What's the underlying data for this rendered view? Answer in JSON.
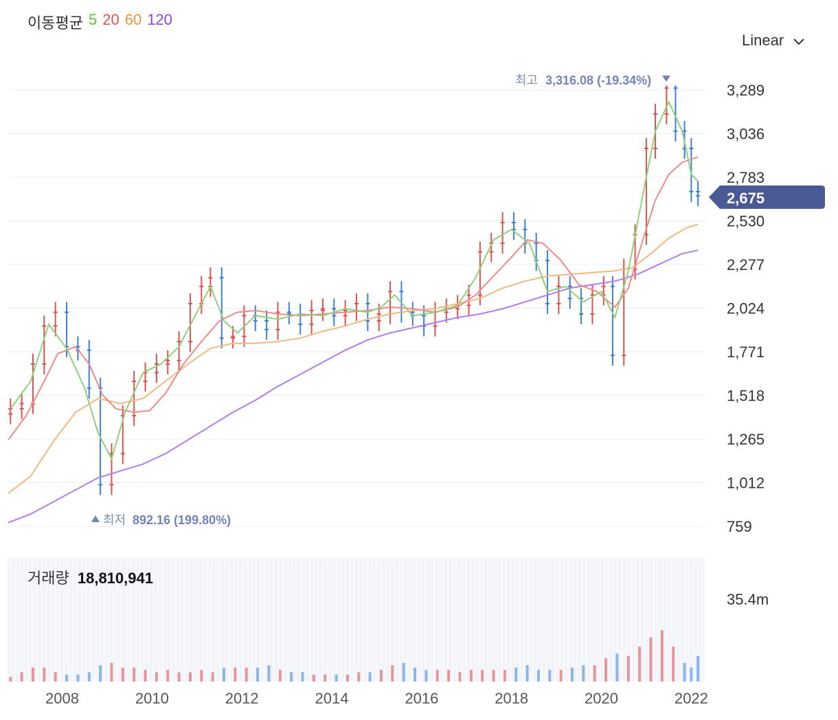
{
  "header": {
    "title": "이동평균",
    "periods": [
      {
        "label": "5",
        "color": "#5ac13d"
      },
      {
        "label": "20",
        "color": "#e8514a"
      },
      {
        "label": "60",
        "color": "#f0913a"
      },
      {
        "label": "120",
        "color": "#8b44e8"
      }
    ]
  },
  "scale": {
    "label": "Linear",
    "icon": "chevron-down-icon"
  },
  "current_price": "2,675",
  "high_marker": {
    "label": "최고",
    "value": "3,316.08 (-19.34%)"
  },
  "low_marker": {
    "label": "최저",
    "value": "892.16 (199.80%)"
  },
  "volume": {
    "label": "거래량",
    "value": "18,810,941",
    "axis_label": "35.4m"
  },
  "colors": {
    "up": "#d9534f",
    "down": "#3d7fd1",
    "grid": "#ececec",
    "ma5": "#8fd07a",
    "ma20": "#ef8a84",
    "ma60": "#f4b77e",
    "ma120": "#b07cf0",
    "tag": "#4a5a96"
  },
  "chart_data": {
    "type": "candlestick",
    "y_ticks": [
      "3,289",
      "3,036",
      "2,783",
      "2,530",
      "2,277",
      "2,024",
      "1,771",
      "1,518",
      "1,265",
      "1,012",
      "759"
    ],
    "y_tick_values": [
      3289,
      3036,
      2783,
      2530,
      2277,
      2024,
      1771,
      1518,
      1265,
      1012,
      759
    ],
    "x_ticks": [
      "2008",
      "2010",
      "2012",
      "2014",
      "2016",
      "2018",
      "2020",
      "2022"
    ],
    "x_tick_values": [
      2008,
      2010,
      2012,
      2014,
      2016,
      2018,
      2020,
      2022
    ],
    "x_range": [
      2006.8,
      2022.3
    ],
    "y_range": [
      759,
      3316
    ],
    "close_series": [
      [
        2006.85,
        1440
      ],
      [
        2007.1,
        1470
      ],
      [
        2007.35,
        1700
      ],
      [
        2007.6,
        1920
      ],
      [
        2007.85,
        2000
      ],
      [
        2008.1,
        1800
      ],
      [
        2008.35,
        1780
      ],
      [
        2008.6,
        1560
      ],
      [
        2008.85,
        1000
      ],
      [
        2009.1,
        1180
      ],
      [
        2009.35,
        1400
      ],
      [
        2009.6,
        1600
      ],
      [
        2009.85,
        1650
      ],
      [
        2010.1,
        1700
      ],
      [
        2010.35,
        1720
      ],
      [
        2010.6,
        1830
      ],
      [
        2010.85,
        2050
      ],
      [
        2011.1,
        2150
      ],
      [
        2011.3,
        2200
      ],
      [
        2011.55,
        1850
      ],
      [
        2011.8,
        1860
      ],
      [
        2012.05,
        1980
      ],
      [
        2012.3,
        1950
      ],
      [
        2012.55,
        1900
      ],
      [
        2012.8,
        2000
      ],
      [
        2013.05,
        1990
      ],
      [
        2013.3,
        1930
      ],
      [
        2013.55,
        2010
      ],
      [
        2013.8,
        2020
      ],
      [
        2014.05,
        1980
      ],
      [
        2014.3,
        2010
      ],
      [
        2014.55,
        2050
      ],
      [
        2014.8,
        1950
      ],
      [
        2015.05,
        1990
      ],
      [
        2015.3,
        2120
      ],
      [
        2015.55,
        2000
      ],
      [
        2015.8,
        1980
      ],
      [
        2016.05,
        1920
      ],
      [
        2016.3,
        2000
      ],
      [
        2016.55,
        2020
      ],
      [
        2016.8,
        2040
      ],
      [
        2017.05,
        2100
      ],
      [
        2017.3,
        2350
      ],
      [
        2017.55,
        2400
      ],
      [
        2017.8,
        2520
      ],
      [
        2018.05,
        2480
      ],
      [
        2018.3,
        2400
      ],
      [
        2018.55,
        2300
      ],
      [
        2018.8,
        2050
      ],
      [
        2019.05,
        2150
      ],
      [
        2019.3,
        2080
      ],
      [
        2019.55,
        1990
      ],
      [
        2019.8,
        2100
      ],
      [
        2020.05,
        2150
      ],
      [
        2020.25,
        1750
      ],
      [
        2020.5,
        2250
      ],
      [
        2020.75,
        2450
      ],
      [
        2021.0,
        2950
      ],
      [
        2021.2,
        3150
      ],
      [
        2021.45,
        3300
      ],
      [
        2021.65,
        3050
      ],
      [
        2021.85,
        2950
      ],
      [
        2022.0,
        2700
      ],
      [
        2022.15,
        2675
      ]
    ],
    "ma5": [
      [
        2006.85,
        1440
      ],
      [
        2007.3,
        1600
      ],
      [
        2007.7,
        1930
      ],
      [
        2008.1,
        1790
      ],
      [
        2008.5,
        1560
      ],
      [
        2008.8,
        1300
      ],
      [
        2009.1,
        1150
      ],
      [
        2009.4,
        1420
      ],
      [
        2009.8,
        1650
      ],
      [
        2010.2,
        1700
      ],
      [
        2010.6,
        1800
      ],
      [
        2011.0,
        2000
      ],
      [
        2011.3,
        2150
      ],
      [
        2011.6,
        1950
      ],
      [
        2011.9,
        1880
      ],
      [
        2012.3,
        1980
      ],
      [
        2012.8,
        1960
      ],
      [
        2013.3,
        1990
      ],
      [
        2013.8,
        1980
      ],
      [
        2014.3,
        2020
      ],
      [
        2014.8,
        2000
      ],
      [
        2015.1,
        2030
      ],
      [
        2015.4,
        2100
      ],
      [
        2015.8,
        1980
      ],
      [
        2016.3,
        2000
      ],
      [
        2016.8,
        2040
      ],
      [
        2017.2,
        2200
      ],
      [
        2017.6,
        2420
      ],
      [
        2018.0,
        2480
      ],
      [
        2018.4,
        2400
      ],
      [
        2018.8,
        2120
      ],
      [
        2019.2,
        2150
      ],
      [
        2019.6,
        2060
      ],
      [
        2020.0,
        2120
      ],
      [
        2020.3,
        1970
      ],
      [
        2020.6,
        2240
      ],
      [
        2020.9,
        2650
      ],
      [
        2021.2,
        3050
      ],
      [
        2021.5,
        3220
      ],
      [
        2021.8,
        3050
      ],
      [
        2022.0,
        2800
      ],
      [
        2022.15,
        2760
      ]
    ],
    "ma20": [
      [
        2006.8,
        1260
      ],
      [
        2007.2,
        1400
      ],
      [
        2007.6,
        1600
      ],
      [
        2007.9,
        1760
      ],
      [
        2008.3,
        1800
      ],
      [
        2008.6,
        1700
      ],
      [
        2008.9,
        1520
      ],
      [
        2009.2,
        1440
      ],
      [
        2009.6,
        1420
      ],
      [
        2009.95,
        1430
      ],
      [
        2010.3,
        1530
      ],
      [
        2010.7,
        1700
      ],
      [
        2011.1,
        1830
      ],
      [
        2011.5,
        1950
      ],
      [
        2011.9,
        2000
      ],
      [
        2012.3,
        2010
      ],
      [
        2012.8,
        1990
      ],
      [
        2013.3,
        1980
      ],
      [
        2013.8,
        1990
      ],
      [
        2014.3,
        2000
      ],
      [
        2014.8,
        2010
      ],
      [
        2015.3,
        2030
      ],
      [
        2015.8,
        2020
      ],
      [
        2016.3,
        2000
      ],
      [
        2016.8,
        2030
      ],
      [
        2017.2,
        2100
      ],
      [
        2017.6,
        2210
      ],
      [
        2018.0,
        2320
      ],
      [
        2018.35,
        2420
      ],
      [
        2018.7,
        2400
      ],
      [
        2019.1,
        2300
      ],
      [
        2019.5,
        2160
      ],
      [
        2019.9,
        2120
      ],
      [
        2020.3,
        2030
      ],
      [
        2020.6,
        2140
      ],
      [
        2020.9,
        2400
      ],
      [
        2021.2,
        2650
      ],
      [
        2021.5,
        2800
      ],
      [
        2021.8,
        2870
      ],
      [
        2022.15,
        2900
      ]
    ],
    "ma60": [
      [
        2006.8,
        950
      ],
      [
        2007.3,
        1050
      ],
      [
        2007.8,
        1250
      ],
      [
        2008.3,
        1420
      ],
      [
        2008.8,
        1500
      ],
      [
        2009.3,
        1470
      ],
      [
        2009.8,
        1500
      ],
      [
        2010.3,
        1600
      ],
      [
        2010.8,
        1700
      ],
      [
        2011.3,
        1790
      ],
      [
        2011.8,
        1820
      ],
      [
        2012.3,
        1820
      ],
      [
        2012.8,
        1830
      ],
      [
        2013.3,
        1850
      ],
      [
        2013.8,
        1890
      ],
      [
        2014.3,
        1920
      ],
      [
        2014.8,
        1960
      ],
      [
        2015.3,
        1990
      ],
      [
        2015.8,
        2010
      ],
      [
        2016.3,
        2020
      ],
      [
        2016.8,
        2050
      ],
      [
        2017.3,
        2080
      ],
      [
        2017.8,
        2140
      ],
      [
        2018.3,
        2180
      ],
      [
        2018.8,
        2210
      ],
      [
        2019.3,
        2220
      ],
      [
        2019.8,
        2230
      ],
      [
        2020.3,
        2240
      ],
      [
        2020.7,
        2260
      ],
      [
        2021.1,
        2340
      ],
      [
        2021.5,
        2430
      ],
      [
        2021.9,
        2490
      ],
      [
        2022.15,
        2510
      ]
    ],
    "ma120": [
      [
        2006.8,
        780
      ],
      [
        2007.3,
        830
      ],
      [
        2007.8,
        900
      ],
      [
        2008.3,
        970
      ],
      [
        2008.8,
        1040
      ],
      [
        2009.3,
        1080
      ],
      [
        2009.8,
        1120
      ],
      [
        2010.3,
        1180
      ],
      [
        2010.8,
        1260
      ],
      [
        2011.3,
        1340
      ],
      [
        2011.8,
        1420
      ],
      [
        2012.3,
        1490
      ],
      [
        2012.8,
        1570
      ],
      [
        2013.3,
        1640
      ],
      [
        2013.8,
        1710
      ],
      [
        2014.3,
        1780
      ],
      [
        2014.8,
        1840
      ],
      [
        2015.3,
        1880
      ],
      [
        2015.8,
        1910
      ],
      [
        2016.3,
        1940
      ],
      [
        2016.8,
        1970
      ],
      [
        2017.3,
        1990
      ],
      [
        2017.8,
        2020
      ],
      [
        2018.3,
        2060
      ],
      [
        2018.8,
        2100
      ],
      [
        2019.3,
        2140
      ],
      [
        2019.8,
        2160
      ],
      [
        2020.3,
        2180
      ],
      [
        2020.8,
        2220
      ],
      [
        2021.3,
        2280
      ],
      [
        2021.8,
        2340
      ],
      [
        2022.15,
        2360
      ]
    ],
    "high": {
      "x": 2021.5,
      "y": 3316.08
    },
    "low": {
      "x": 2008.85,
      "y": 892.16
    },
    "volume_max": 35.4,
    "volume_series": [
      [
        2006.85,
        2
      ],
      [
        2007.1,
        4
      ],
      [
        2007.35,
        6
      ],
      [
        2007.6,
        6
      ],
      [
        2007.85,
        4
      ],
      [
        2008.1,
        3
      ],
      [
        2008.35,
        3
      ],
      [
        2008.6,
        4
      ],
      [
        2008.85,
        7
      ],
      [
        2009.1,
        8
      ],
      [
        2009.35,
        6
      ],
      [
        2009.6,
        6
      ],
      [
        2009.85,
        5
      ],
      [
        2010.1,
        4
      ],
      [
        2010.35,
        5
      ],
      [
        2010.6,
        4
      ],
      [
        2010.85,
        4
      ],
      [
        2011.1,
        5
      ],
      [
        2011.35,
        4
      ],
      [
        2011.6,
        6
      ],
      [
        2011.85,
        6
      ],
      [
        2012.1,
        6
      ],
      [
        2012.35,
        6
      ],
      [
        2012.6,
        7
      ],
      [
        2012.85,
        5
      ],
      [
        2013.1,
        4
      ],
      [
        2013.35,
        4
      ],
      [
        2013.6,
        3
      ],
      [
        2013.85,
        3
      ],
      [
        2014.1,
        3
      ],
      [
        2014.35,
        3
      ],
      [
        2014.6,
        4
      ],
      [
        2014.85,
        4
      ],
      [
        2015.1,
        5
      ],
      [
        2015.35,
        7
      ],
      [
        2015.6,
        8
      ],
      [
        2015.85,
        6
      ],
      [
        2016.1,
        5
      ],
      [
        2016.35,
        5
      ],
      [
        2016.6,
        5
      ],
      [
        2016.85,
        4
      ],
      [
        2017.1,
        5
      ],
      [
        2017.35,
        5
      ],
      [
        2017.6,
        5
      ],
      [
        2017.85,
        5
      ],
      [
        2018.1,
        6
      ],
      [
        2018.35,
        7
      ],
      [
        2018.6,
        5
      ],
      [
        2018.85,
        5
      ],
      [
        2019.1,
        5
      ],
      [
        2019.35,
        6
      ],
      [
        2019.6,
        7
      ],
      [
        2019.85,
        7
      ],
      [
        2020.1,
        10
      ],
      [
        2020.35,
        12
      ],
      [
        2020.6,
        11
      ],
      [
        2020.85,
        15
      ],
      [
        2021.1,
        19
      ],
      [
        2021.35,
        22
      ],
      [
        2021.6,
        15
      ],
      [
        2021.85,
        8
      ],
      [
        2022.0,
        6
      ],
      [
        2022.15,
        11
      ]
    ]
  }
}
